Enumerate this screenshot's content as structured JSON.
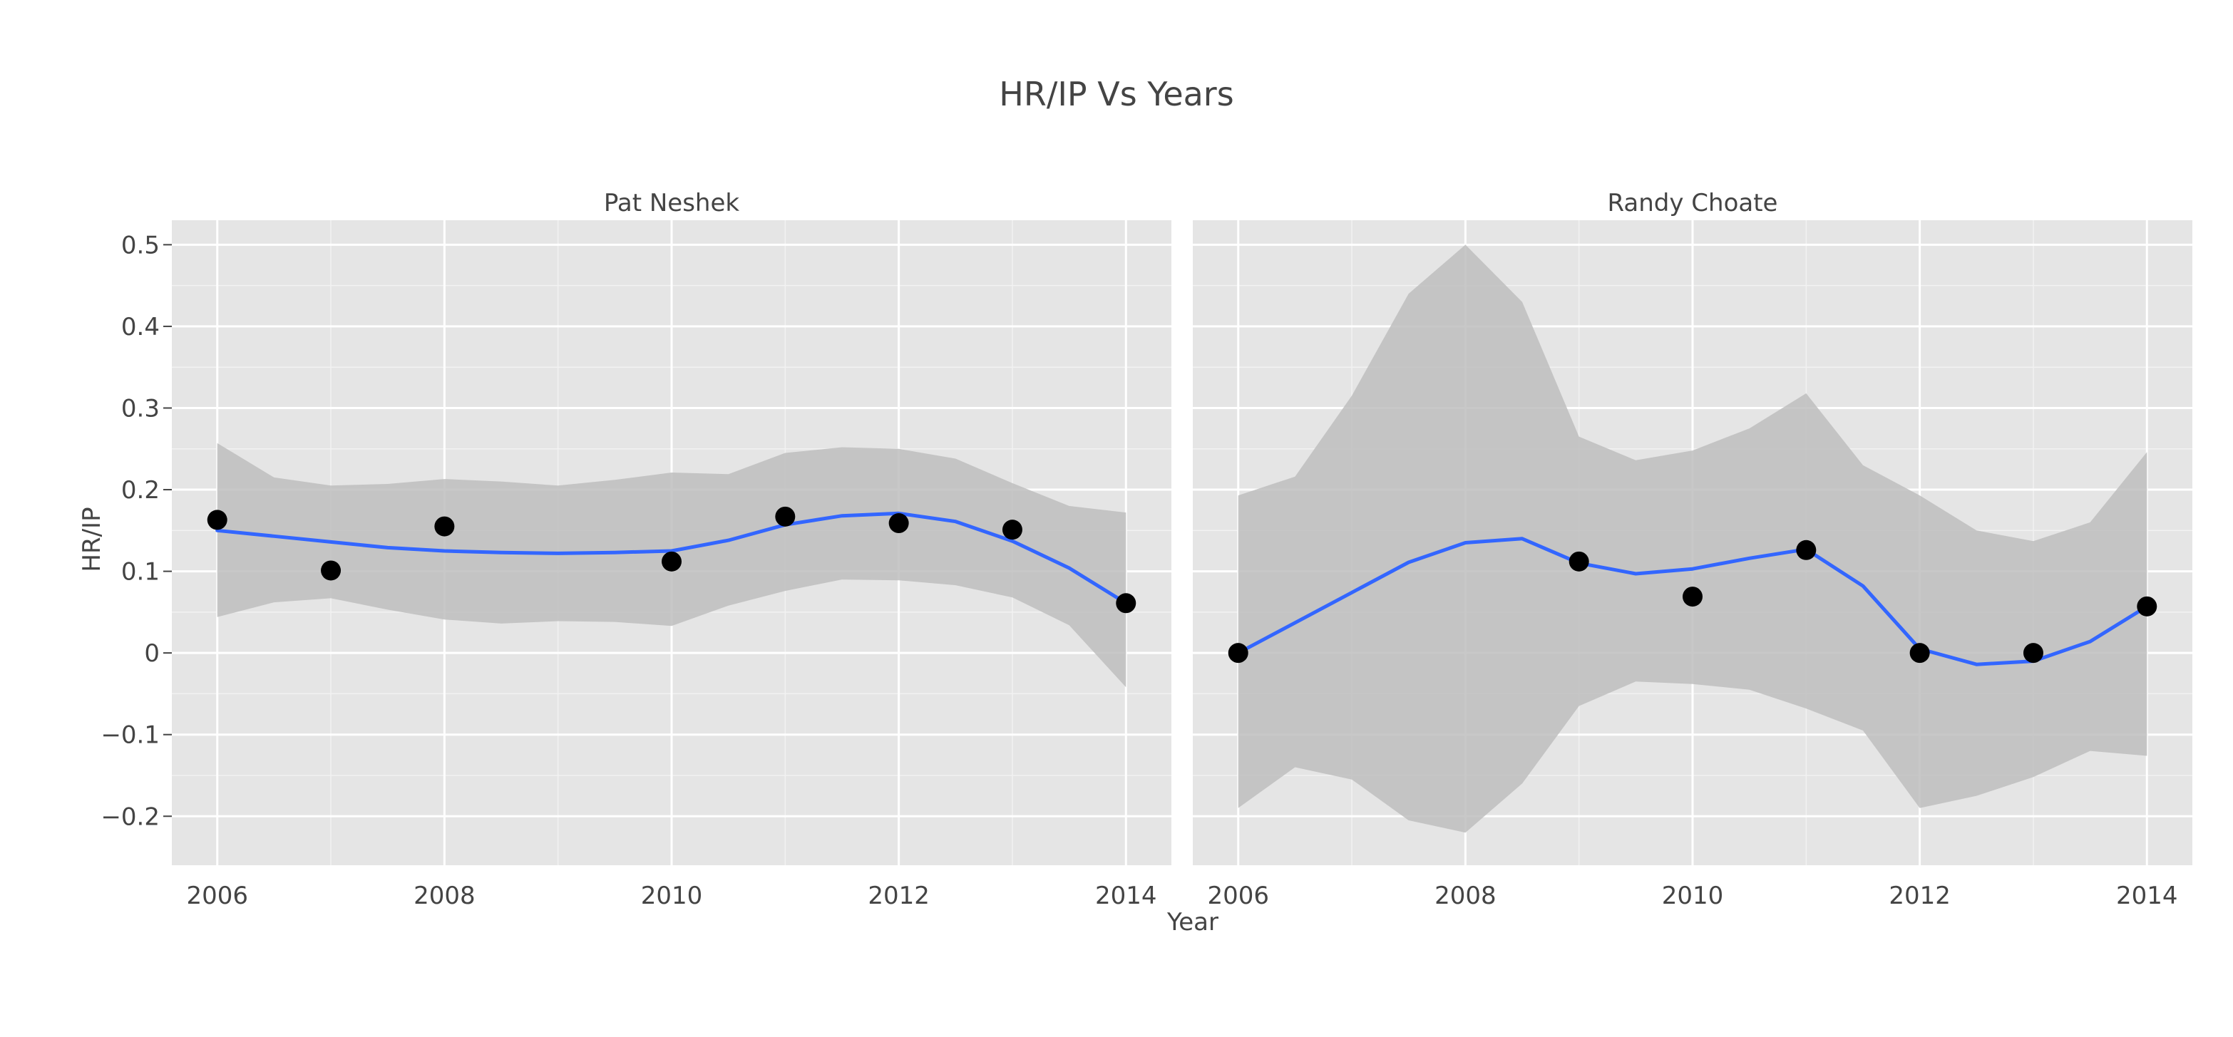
{
  "chart_data": {
    "type": "scatter",
    "title": "HR/IP Vs Years",
    "xlabel": "Year",
    "ylabel": "HR/IP",
    "xlim": [
      2005.6,
      2014.4
    ],
    "ylim": [
      -0.26,
      0.53
    ],
    "xticks": [
      2006,
      2008,
      2010,
      2012,
      2014
    ],
    "yticks": [
      -0.2,
      -0.1,
      0,
      0.1,
      0.2,
      0.3,
      0.4,
      0.5
    ],
    "ytick_labels": [
      "−0.2",
      "−0.1",
      "0",
      "0.1",
      "0.2",
      "0.3",
      "0.4",
      "0.5"
    ],
    "grid": true,
    "colors": {
      "panel_bg": "#e5e5e5",
      "grid": "#ffffff",
      "ribbon": "#bebebe",
      "smooth_line": "#3366ff",
      "points": "#000000"
    },
    "panels": [
      {
        "label": "Pat Neshek",
        "points": {
          "x": [
            2006,
            2007,
            2008,
            2010,
            2011,
            2012,
            2013,
            2014
          ],
          "y": [
            0.163,
            0.101,
            0.155,
            0.112,
            0.167,
            0.159,
            0.151,
            0.061
          ]
        },
        "smooth": {
          "x": [
            2006,
            2006.5,
            2007,
            2007.5,
            2008,
            2008.5,
            2009,
            2009.5,
            2010,
            2010.5,
            2011,
            2011.5,
            2012,
            2012.5,
            2013,
            2013.5,
            2014
          ],
          "y": [
            0.15,
            0.143,
            0.136,
            0.129,
            0.125,
            0.123,
            0.122,
            0.123,
            0.125,
            0.138,
            0.157,
            0.168,
            0.171,
            0.161,
            0.137,
            0.104,
            0.061
          ],
          "lower": [
            0.044,
            0.062,
            0.067,
            0.053,
            0.041,
            0.036,
            0.039,
            0.038,
            0.033,
            0.058,
            0.076,
            0.09,
            0.089,
            0.083,
            0.068,
            0.034,
            -0.042
          ],
          "upper": [
            0.257,
            0.215,
            0.205,
            0.207,
            0.213,
            0.21,
            0.205,
            0.212,
            0.221,
            0.219,
            0.245,
            0.252,
            0.25,
            0.238,
            0.208,
            0.18,
            0.172
          ]
        }
      },
      {
        "label": "Randy Choate",
        "points": {
          "x": [
            2006,
            2009,
            2010,
            2011,
            2012,
            2013,
            2014
          ],
          "y": [
            0.0,
            0.112,
            0.069,
            0.126,
            0.0,
            0.0,
            0.057
          ]
        },
        "smooth": {
          "x": [
            2006,
            2006.5,
            2007,
            2007.5,
            2008,
            2008.5,
            2009,
            2009.5,
            2010,
            2010.5,
            2011,
            2011.5,
            2012,
            2012.5,
            2013,
            2013.5,
            2014
          ],
          "y": [
            0.0,
            0.037,
            0.074,
            0.111,
            0.135,
            0.14,
            0.11,
            0.097,
            0.103,
            0.116,
            0.127,
            0.082,
            0.005,
            -0.014,
            -0.01,
            0.014,
            0.057
          ],
          "lower": [
            -0.19,
            -0.14,
            -0.155,
            -0.205,
            -0.22,
            -0.16,
            -0.065,
            -0.035,
            -0.038,
            -0.045,
            -0.068,
            -0.095,
            -0.19,
            -0.175,
            -0.152,
            -0.12,
            -0.126
          ],
          "upper": [
            0.193,
            0.216,
            0.315,
            0.44,
            0.5,
            0.43,
            0.265,
            0.236,
            0.248,
            0.275,
            0.318,
            0.23,
            0.193,
            0.15,
            0.137,
            0.16,
            0.246
          ]
        }
      }
    ]
  }
}
